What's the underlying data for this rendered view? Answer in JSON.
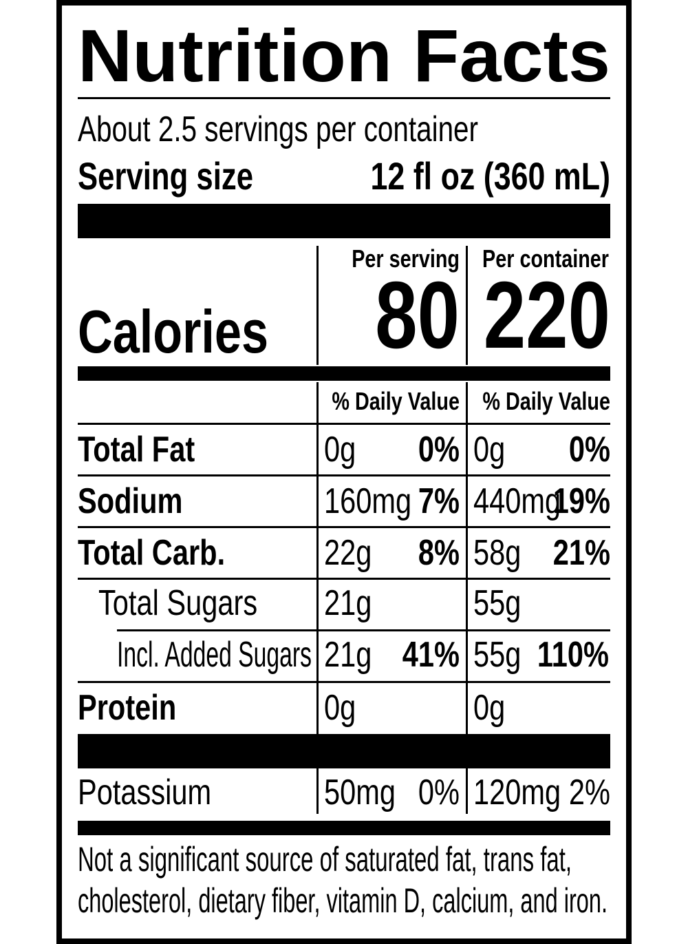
{
  "title": "Nutrition Facts",
  "servings": "About 2.5 servings per container",
  "serving_size": {
    "label": "Serving size",
    "value": "12 fl oz (360 mL)"
  },
  "calories": {
    "label": "Calories",
    "per_serving": {
      "header": "Per serving",
      "value": "80"
    },
    "per_container": {
      "header": "Per container",
      "value": "220"
    }
  },
  "dv_headers": [
    "% Daily Value",
    "% Daily Value"
  ],
  "rows": [
    {
      "name": "Total Fat",
      "per_serving": {
        "amount": "0g",
        "dv": "0%"
      },
      "per_container": {
        "amount": "0g",
        "dv": "0%"
      }
    },
    {
      "name": "Sodium",
      "per_serving": {
        "amount": "160mg",
        "dv": "7%"
      },
      "per_container": {
        "amount": "440mg",
        "dv": "19%"
      }
    },
    {
      "name": "Total Carb.",
      "per_serving": {
        "amount": "22g",
        "dv": "8%"
      },
      "per_container": {
        "amount": "58g",
        "dv": "21%"
      }
    },
    {
      "name": "Total Sugars",
      "per_serving": {
        "amount": "21g"
      },
      "per_container": {
        "amount": "55g"
      }
    },
    {
      "name": "Incl. Added Sugars",
      "per_serving": {
        "amount": "21g",
        "dv": "41%"
      },
      "per_container": {
        "amount": "55g",
        "dv": "110%"
      }
    },
    {
      "name": "Protein",
      "per_serving": {
        "amount": "0g"
      },
      "per_container": {
        "amount": "0g"
      }
    },
    {
      "name": "Potassium",
      "per_serving": {
        "amount": "50mg",
        "dv": "0%"
      },
      "per_container": {
        "amount": "120mg",
        "dv": "2%"
      }
    }
  ],
  "footnote": [
    "Not a significant source of saturated fat, trans fat,",
    "cholesterol, dietary fiber, vitamin D, calcium, and iron."
  ]
}
